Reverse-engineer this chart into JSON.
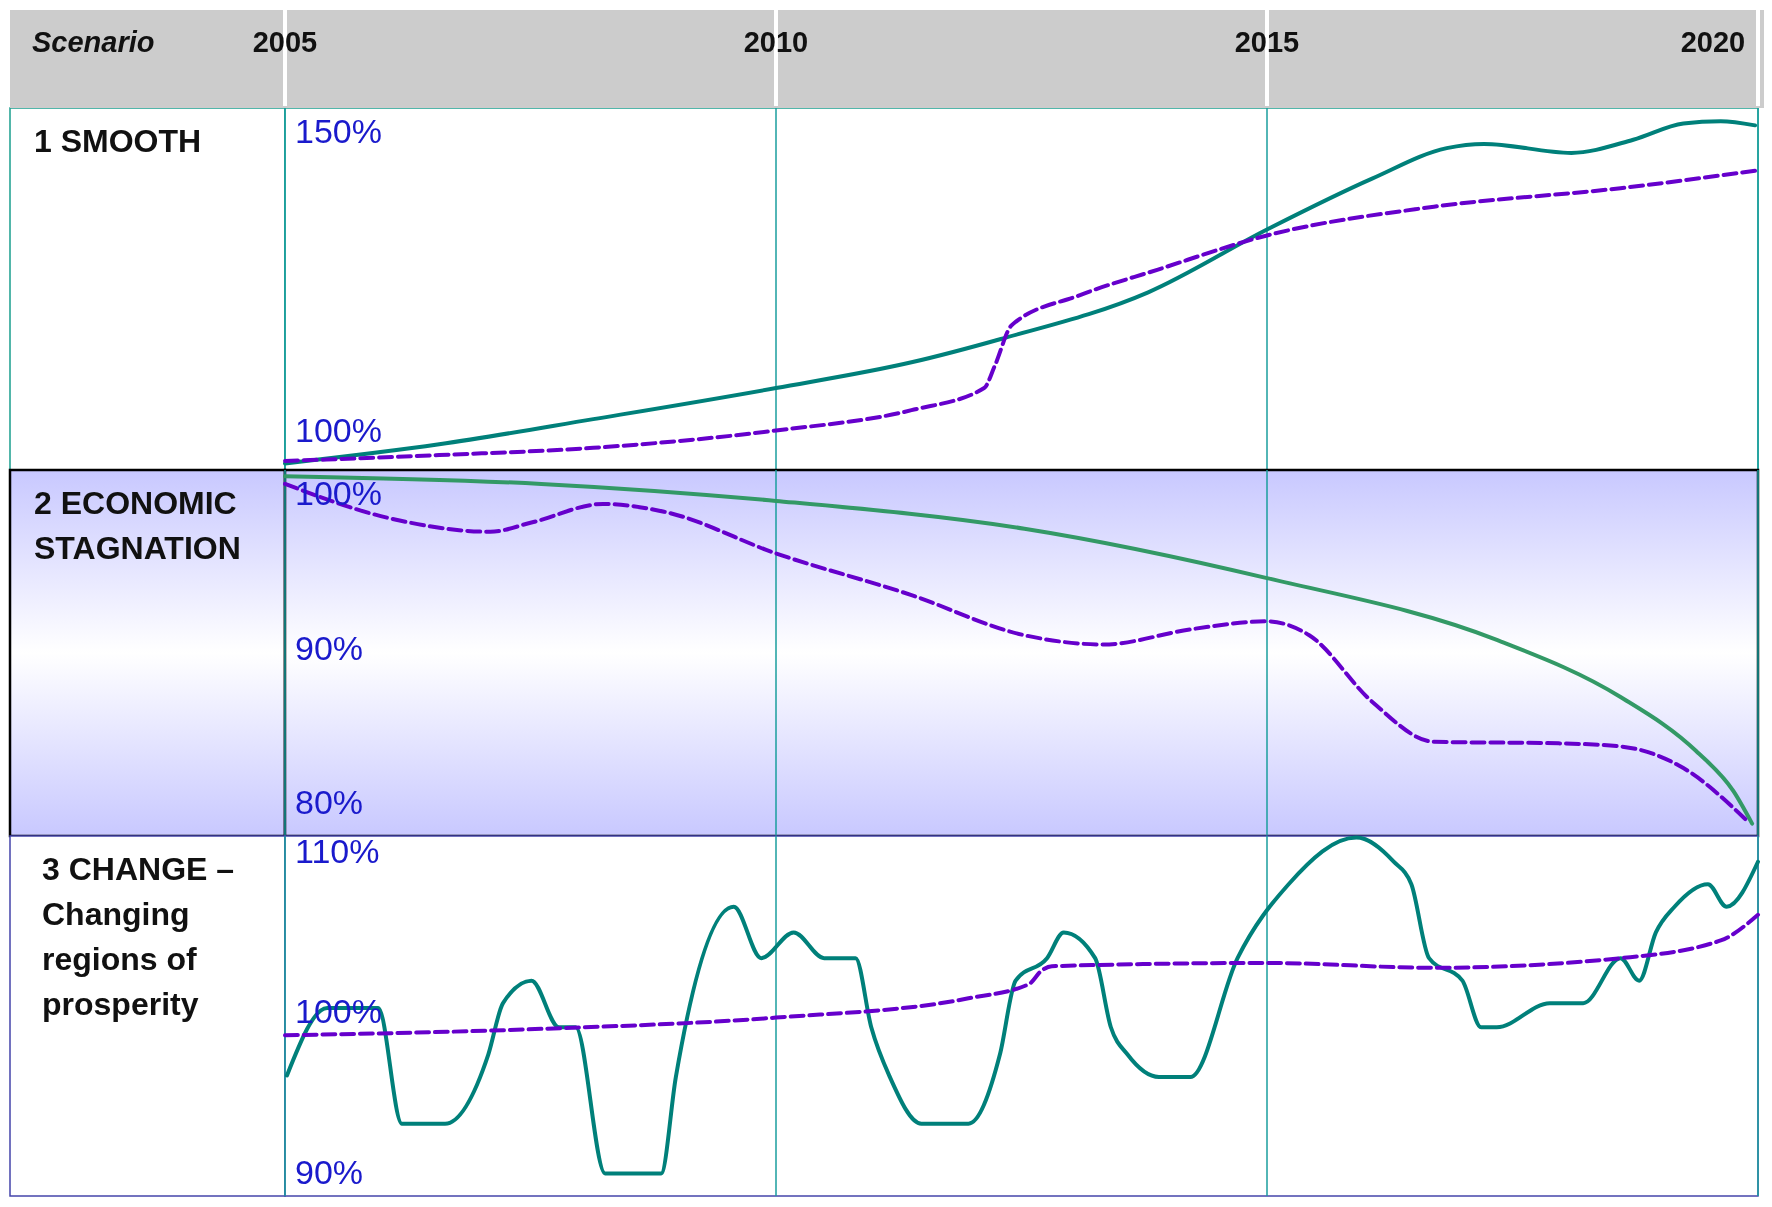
{
  "chart_data": [
    {
      "type": "line",
      "title": "1 SMOOTH",
      "xlabel": "Scenario",
      "xlim": [
        2005,
        2020
      ],
      "xticks": [
        2005,
        2010,
        2015,
        2020
      ],
      "ylim": [
        93.8,
        154.3
      ],
      "yticks": [
        {
          "value": 100,
          "label": "100%"
        },
        {
          "value": 150,
          "label": "150%"
        }
      ],
      "grid": "x",
      "series": [
        {
          "color": "#00807a",
          "line_style": "solid",
          "x": [
            2005,
            2006.57,
            2008.14,
            2010,
            2011.38,
            2012.29,
            2013.79,
            2015,
            2016.07,
            2016.83,
            2017.21,
            2018.1,
            2018.73,
            2019.24,
            2019.62,
            2019.97
          ],
          "values": [
            94.9,
            98.1,
            102.3,
            107.5,
            111.8,
            115.7,
            123.5,
            134.0,
            142.5,
            147.6,
            148.3,
            146.8,
            149.0,
            151.7,
            152.1,
            151.4
          ]
        },
        {
          "color": "#6600cc",
          "line_style": "dashed",
          "x": [
            2005,
            2006.57,
            2008.14,
            2010,
            2011.38,
            2012.12,
            2012.23,
            2012.4,
            2013.09,
            2013.89,
            2015,
            2016.7,
            2018.6,
            2019.97
          ],
          "values": [
            95.3,
            96.3,
            97.5,
            100.4,
            103.8,
            107.5,
            111.3,
            118.0,
            123.0,
            127.3,
            133.0,
            137.8,
            140.9,
            143.8
          ]
        }
      ]
    },
    {
      "type": "line",
      "title": "2 ECONOMIC STAGNATION",
      "xlim": [
        2005,
        2020
      ],
      "xticks": [
        2005,
        2010,
        2015,
        2020
      ],
      "ylim": [
        78,
        101.7
      ],
      "yticks": [
        {
          "value": 80,
          "label": "80%"
        },
        {
          "value": 90,
          "label": "90%"
        },
        {
          "value": 100,
          "label": "100%"
        }
      ],
      "grid": "x",
      "tick_labels": "y",
      "series": [
        {
          "color": "#339966",
          "line_style": "solid",
          "x": [
            2005,
            2007.61,
            2010,
            2012.53,
            2015,
            2017.34,
            2018.6,
            2019.37,
            2019.75,
            2019.94
          ],
          "values": [
            101.3,
            100.8,
            99.7,
            97.9,
            94.7,
            90.7,
            87.0,
            83.5,
            80.9,
            78.8
          ]
        },
        {
          "color": "#6600cc",
          "line_style": "dashed",
          "x": [
            2005,
            2006.05,
            2007.09,
            2007.51,
            2008.24,
            2008.86,
            2010,
            2011.38,
            2012.53,
            2013.33,
            2014.24,
            2015,
            2015.43,
            2016.07,
            2016.7,
            2017.97,
            2018.6,
            2019.24,
            2019.87
          ],
          "values": [
            100.8,
            98.6,
            97.7,
            98.3,
            99.5,
            99.0,
            96.3,
            93.6,
            91.0,
            90.4,
            91.4,
            91.9,
            91.0,
            86.7,
            84.1,
            84.0,
            83.8,
            82.4,
            79.1
          ]
        }
      ]
    },
    {
      "type": "line",
      "title": "3 CHANGE – Changing regions of prosperity",
      "xlim": [
        2005,
        2020
      ],
      "xticks": [
        2005,
        2010,
        2015,
        2020
      ],
      "ylim": [
        88.7,
        111.1
      ],
      "yticks": [
        {
          "value": 90,
          "label": "90%"
        },
        {
          "value": 100,
          "label": "100%"
        },
        {
          "value": 110,
          "label": "110%"
        }
      ],
      "grid": "x",
      "tick_labels": "y",
      "series": [
        {
          "color": "#00807a",
          "line_style": "solid",
          "x": [
            2005.02,
            2005.43,
            2005.95,
            2006.19,
            2006.63,
            2007.07,
            2007.22,
            2007.51,
            2007.79,
            2007.96,
            2008.26,
            2008.83,
            2008.98,
            2009.57,
            2009.85,
            2010.18,
            2010.49,
            2010.81,
            2010.97,
            2011.16,
            2011.48,
            2011.96,
            2012.28,
            2012.44,
            2012.76,
            2012.93,
            2013.25,
            2013.41,
            2013.58,
            2013.9,
            2014.22,
            2014.7,
            2015.22,
            2015.91,
            2016.29,
            2016.47,
            2016.65,
            2016.99,
            2017.18,
            2017.34,
            2017.88,
            2018.22,
            2018.6,
            2018.79,
            2018.96,
            2019.15,
            2019.49,
            2019.68,
            2020
          ],
          "values": [
            96.2,
            100.4,
            100.4,
            93.2,
            93.2,
            97.5,
            100.7,
            102.1,
            99.2,
            99.2,
            90.1,
            90.1,
            96.1,
            106.7,
            103.5,
            105.1,
            103.5,
            103.5,
            99.2,
            96.1,
            93.2,
            93.2,
            97.5,
            102.1,
            103.5,
            105.1,
            103.5,
            99.2,
            97.5,
            96.1,
            96.1,
            103.5,
            108.1,
            111.0,
            109.5,
            108.1,
            103.5,
            102.1,
            99.2,
            99.2,
            100.7,
            100.7,
            103.5,
            102.1,
            105.1,
            106.7,
            108.1,
            106.7,
            109.5
          ]
        },
        {
          "color": "#6600cc",
          "line_style": "dashed",
          "x": [
            2005,
            2007.61,
            2010,
            2011.96,
            2012.58,
            2012.7,
            2012.81,
            2015,
            2016.7,
            2018.6,
            2019.62,
            2020
          ],
          "values": [
            98.7,
            99.1,
            99.8,
            101.0,
            101.9,
            102.7,
            103.0,
            103.2,
            102.9,
            103.5,
            104.6,
            106.2
          ]
        }
      ]
    }
  ]
}
